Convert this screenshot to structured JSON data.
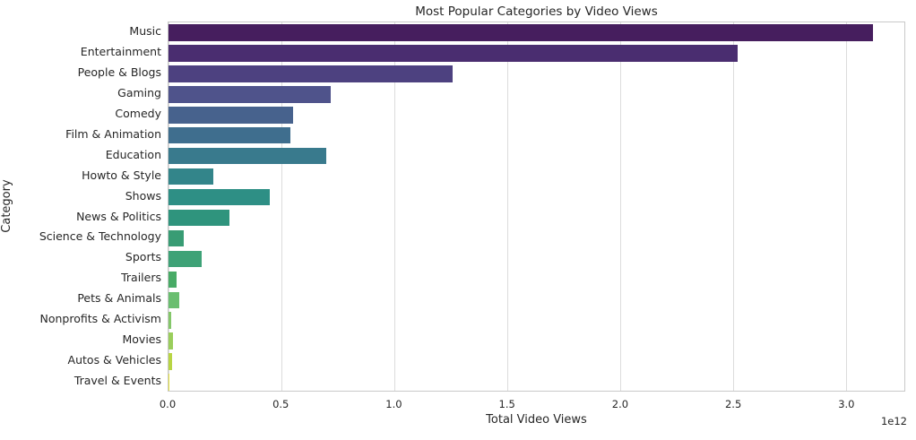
{
  "figure": {
    "title": "Most Popular Categories by Video Views",
    "xlabel": "Total Video Views",
    "ylabel": "Category",
    "offset_label": "1e12"
  },
  "chart_data": {
    "type": "bar",
    "orientation": "horizontal",
    "title": "Most Popular Categories by Video Views",
    "xlabel": "Total Video Views",
    "ylabel": "Category",
    "grid": true,
    "legend": false,
    "xlim": [
      0,
      3260000000000.0
    ],
    "x_ticks": [
      0.0,
      0.5,
      1.0,
      1.5,
      2.0,
      2.5,
      3.0
    ],
    "x_tick_labels": [
      "0.0",
      "0.5",
      "1.0",
      "1.5",
      "2.0",
      "2.5",
      "3.0"
    ],
    "axis_offset_text": "1e12",
    "categories": [
      "Music",
      "Entertainment",
      "People & Blogs",
      "Gaming",
      "Comedy",
      "Film & Animation",
      "Education",
      "Howto & Style",
      "Shows",
      "News & Politics",
      "Science & Technology",
      "Sports",
      "Trailers",
      "Pets & Animals",
      "Nonprofits & Activism",
      "Movies",
      "Autos & Vehicles",
      "Travel & Events"
    ],
    "values": [
      3120000000000.0,
      2520000000000.0,
      1260000000000.0,
      720000000000.0,
      550000000000.0,
      540000000000.0,
      700000000000.0,
      200000000000.0,
      450000000000.0,
      270000000000.0,
      67000000000.0,
      147000000000.0,
      36000000000.0,
      48000000000.0,
      12000000000.0,
      20000000000.0,
      16000000000.0,
      2000000000.0
    ],
    "bar_colors": [
      "#461e5e",
      "#4a2d70",
      "#4d4180",
      "#4f538b",
      "#47628d",
      "#3f6e8e",
      "#397a8d",
      "#33858a",
      "#2e8f85",
      "#2f947d",
      "#389c74",
      "#3ea277",
      "#48ab66",
      "#6abe70",
      "#84c76a",
      "#9ace5c",
      "#b8d544",
      "#e7e33c"
    ],
    "palette": "viridis",
    "style_colors": {
      "background": "#ffffff",
      "grid": "#dcdcdc",
      "spine": "#c9c9c9",
      "text": "#262626"
    }
  }
}
